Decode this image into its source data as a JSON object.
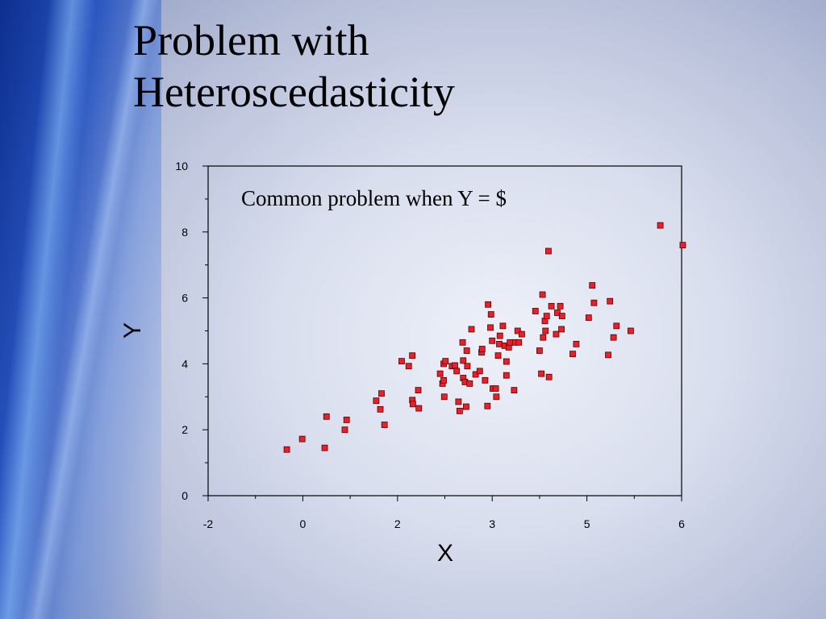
{
  "slide": {
    "title_line1": "Problem with",
    "title_line2": "Heteroscedasticity"
  },
  "chart_data": {
    "type": "scatter",
    "title": "",
    "xlabel": "X",
    "ylabel": "Y",
    "annotation": "Common problem when Y = $",
    "xlim": [
      -2,
      6
    ],
    "ylim": [
      0,
      10
    ],
    "x_tick_labels": [
      "-2",
      "0",
      "2",
      "3",
      "5",
      "6"
    ],
    "y_tick_labels": [
      "0",
      "2",
      "4",
      "6",
      "8",
      "10"
    ],
    "grid": false,
    "marker_color": "#e8202a",
    "marker_edge": "#5a0000",
    "points": [
      [
        -0.67,
        1.4
      ],
      [
        -0.41,
        1.72
      ],
      [
        -0.03,
        1.45
      ],
      [
        0.0,
        2.4
      ],
      [
        0.31,
        2.0
      ],
      [
        0.34,
        2.3
      ],
      [
        0.84,
        2.88
      ],
      [
        0.93,
        3.1
      ],
      [
        0.91,
        2.62
      ],
      [
        0.98,
        2.15
      ],
      [
        1.27,
        4.08
      ],
      [
        1.39,
        3.93
      ],
      [
        1.45,
        4.25
      ],
      [
        1.45,
        2.9
      ],
      [
        1.46,
        2.78
      ],
      [
        1.55,
        3.2
      ],
      [
        1.56,
        2.65
      ],
      [
        1.92,
        3.7
      ],
      [
        1.96,
        3.4
      ],
      [
        1.98,
        3.5
      ],
      [
        1.99,
        3.0
      ],
      [
        1.98,
        4.0
      ],
      [
        2.01,
        4.08
      ],
      [
        2.12,
        3.93
      ],
      [
        2.17,
        3.95
      ],
      [
        2.2,
        3.78
      ],
      [
        2.23,
        2.85
      ],
      [
        2.25,
        2.57
      ],
      [
        2.3,
        4.65
      ],
      [
        2.31,
        4.1
      ],
      [
        2.31,
        3.57
      ],
      [
        2.34,
        3.45
      ],
      [
        2.36,
        2.7
      ],
      [
        2.37,
        4.4
      ],
      [
        2.38,
        3.93
      ],
      [
        2.42,
        3.4
      ],
      [
        2.45,
        5.05
      ],
      [
        2.52,
        3.68
      ],
      [
        2.59,
        3.78
      ],
      [
        2.62,
        4.35
      ],
      [
        2.63,
        4.45
      ],
      [
        2.68,
        3.5
      ],
      [
        2.72,
        2.72
      ],
      [
        2.73,
        5.8
      ],
      [
        2.77,
        5.1
      ],
      [
        2.78,
        5.5
      ],
      [
        2.8,
        4.7
      ],
      [
        2.81,
        3.25
      ],
      [
        2.86,
        3.25
      ],
      [
        2.87,
        3.0
      ],
      [
        2.9,
        4.25
      ],
      [
        2.92,
        4.6
      ],
      [
        2.93,
        4.85
      ],
      [
        2.98,
        5.15
      ],
      [
        3.01,
        4.55
      ],
      [
        3.04,
        4.07
      ],
      [
        3.04,
        3.65
      ],
      [
        3.08,
        4.5
      ],
      [
        3.1,
        4.65
      ],
      [
        3.17,
        3.2
      ],
      [
        3.19,
        4.65
      ],
      [
        3.23,
        5.0
      ],
      [
        3.25,
        4.65
      ],
      [
        3.3,
        4.9
      ],
      [
        3.53,
        5.6
      ],
      [
        3.6,
        4.4
      ],
      [
        3.63,
        3.7
      ],
      [
        3.65,
        6.1
      ],
      [
        3.66,
        4.8
      ],
      [
        3.69,
        5.3
      ],
      [
        3.7,
        5.0
      ],
      [
        3.72,
        5.45
      ],
      [
        3.75,
        7.42
      ],
      [
        3.76,
        3.6
      ],
      [
        3.8,
        5.75
      ],
      [
        3.88,
        4.9
      ],
      [
        3.9,
        5.55
      ],
      [
        3.95,
        5.75
      ],
      [
        3.97,
        5.05
      ],
      [
        3.98,
        5.45
      ],
      [
        4.16,
        4.3
      ],
      [
        4.22,
        4.6
      ],
      [
        4.43,
        5.4
      ],
      [
        4.49,
        6.38
      ],
      [
        4.52,
        5.85
      ],
      [
        4.76,
        4.27
      ],
      [
        4.79,
        5.9
      ],
      [
        4.85,
        4.8
      ],
      [
        4.9,
        5.15
      ],
      [
        5.14,
        5.0
      ],
      [
        5.64,
        8.2
      ],
      [
        6.02,
        7.6
      ]
    ]
  }
}
